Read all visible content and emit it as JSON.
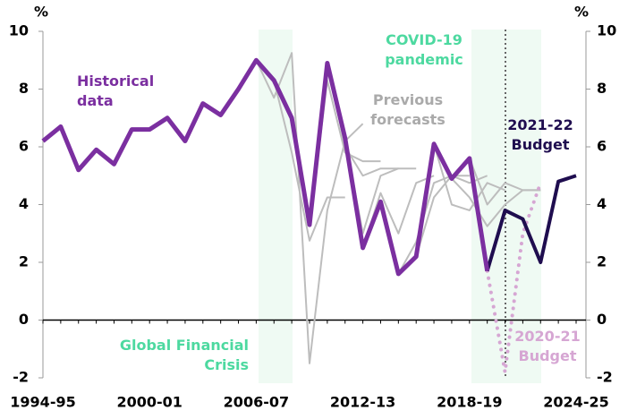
{
  "chart_data": {
    "type": "line",
    "categories": [
      "1994-95",
      null,
      null,
      null,
      null,
      null,
      "2000-01",
      null,
      null,
      null,
      null,
      null,
      "2006-07",
      null,
      null,
      null,
      null,
      null,
      "2012-13",
      null,
      null,
      null,
      null,
      null,
      "2018-19",
      null,
      null,
      null,
      null,
      null,
      "2024-25"
    ],
    "y_label": "%",
    "y2_label": "%",
    "ylim": [
      -2,
      10
    ],
    "yticks": [
      -2,
      0,
      2,
      4,
      6,
      8,
      10
    ],
    "y2lim": [
      -2,
      10
    ],
    "y2ticks": [
      -2,
      0,
      2,
      4,
      6,
      8,
      10
    ],
    "series": [
      {
        "name": [
          "Historical",
          "data"
        ],
        "color": "#7b2fa0",
        "width": 5,
        "values": [
          6.2,
          6.7,
          5.2,
          5.9,
          5.4,
          6.6,
          6.6,
          7.0,
          6.2,
          7.5,
          7.1,
          8.0,
          9.0,
          8.3,
          7.0,
          3.3,
          8.9,
          6.3,
          2.5,
          4.1,
          1.6,
          2.2,
          6.1,
          4.9,
          5.6,
          1.7,
          null,
          null,
          null,
          null,
          null
        ]
      },
      {
        "name": [
          "2021-22",
          "Budget"
        ],
        "color": "#1f0d4f",
        "width": 4,
        "values": [
          null,
          null,
          null,
          null,
          null,
          null,
          null,
          null,
          null,
          null,
          null,
          null,
          null,
          null,
          null,
          null,
          null,
          null,
          null,
          null,
          null,
          null,
          null,
          null,
          null,
          1.7,
          3.8,
          3.5,
          2.0,
          4.8,
          5.0
        ]
      },
      {
        "name": [
          "2020-21",
          "Budget"
        ],
        "color": "#d6a6d3",
        "width": 4,
        "dotted": true,
        "values": [
          null,
          null,
          null,
          null,
          null,
          null,
          null,
          null,
          null,
          null,
          null,
          null,
          null,
          null,
          null,
          null,
          null,
          null,
          null,
          null,
          null,
          null,
          null,
          null,
          null,
          1.7,
          -1.8,
          3.0,
          4.75,
          null,
          null
        ]
      }
    ],
    "forecasts_label": [
      "Previous",
      "forecasts"
    ],
    "forecasts_color": "#bdbdbd",
    "forecasts": [
      [
        null,
        null,
        null,
        null,
        null,
        null,
        null,
        null,
        null,
        null,
        null,
        null,
        null,
        8.3,
        5.8,
        2.75,
        4.25,
        4.25,
        null,
        null,
        null,
        null,
        null,
        null,
        null,
        null,
        null,
        null,
        null,
        null,
        null
      ],
      [
        null,
        null,
        null,
        null,
        null,
        null,
        null,
        null,
        null,
        null,
        null,
        null,
        9.0,
        7.7,
        9.25,
        -1.5,
        3.8,
        6.2,
        6.8,
        null,
        null,
        null,
        null,
        null,
        null,
        null,
        null,
        null,
        null,
        null,
        null
      ],
      [
        null,
        null,
        null,
        null,
        null,
        null,
        null,
        null,
        null,
        null,
        null,
        null,
        null,
        null,
        null,
        3.3,
        8.3,
        5.8,
        5.5,
        5.5,
        null,
        null,
        null,
        null,
        null,
        null,
        null,
        null,
        null,
        null,
        null
      ],
      [
        null,
        null,
        null,
        null,
        null,
        null,
        null,
        null,
        null,
        null,
        null,
        null,
        null,
        null,
        null,
        null,
        8.9,
        6.0,
        5.0,
        5.25,
        5.25,
        null,
        null,
        null,
        null,
        null,
        null,
        null,
        null,
        null,
        null
      ],
      [
        null,
        null,
        null,
        null,
        null,
        null,
        null,
        null,
        null,
        null,
        null,
        null,
        null,
        null,
        null,
        null,
        null,
        6.3,
        3.0,
        5.0,
        5.25,
        5.25,
        null,
        null,
        null,
        null,
        null,
        null,
        null,
        null,
        null
      ],
      [
        null,
        null,
        null,
        null,
        null,
        null,
        null,
        null,
        null,
        null,
        null,
        null,
        null,
        null,
        null,
        null,
        null,
        null,
        2.5,
        4.4,
        3.0,
        4.75,
        5.0,
        null,
        null,
        null,
        null,
        null,
        null,
        null,
        null
      ],
      [
        null,
        null,
        null,
        null,
        null,
        null,
        null,
        null,
        null,
        null,
        null,
        null,
        null,
        null,
        null,
        null,
        null,
        null,
        null,
        null,
        1.6,
        2.7,
        4.75,
        5.0,
        5.0,
        null,
        null,
        null,
        null,
        null,
        null
      ],
      [
        null,
        null,
        null,
        null,
        null,
        null,
        null,
        null,
        null,
        null,
        null,
        null,
        null,
        null,
        null,
        null,
        null,
        null,
        null,
        null,
        null,
        2.2,
        4.25,
        5.0,
        4.75,
        5.0,
        null,
        null,
        null,
        null,
        null
      ],
      [
        null,
        null,
        null,
        null,
        null,
        null,
        null,
        null,
        null,
        null,
        null,
        null,
        null,
        null,
        null,
        null,
        null,
        null,
        null,
        null,
        null,
        null,
        6.1,
        4.0,
        3.8,
        4.75,
        4.5,
        null,
        null,
        null,
        null
      ],
      [
        null,
        null,
        null,
        null,
        null,
        null,
        null,
        null,
        null,
        null,
        null,
        null,
        null,
        null,
        null,
        null,
        null,
        null,
        null,
        null,
        null,
        null,
        null,
        4.9,
        4.25,
        3.25,
        4.0,
        4.5,
        4.5,
        null,
        null
      ],
      [
        null,
        null,
        null,
        null,
        null,
        null,
        null,
        null,
        null,
        null,
        null,
        null,
        null,
        null,
        null,
        null,
        null,
        null,
        null,
        null,
        null,
        null,
        null,
        null,
        5.6,
        4.0,
        4.75,
        4.5,
        4.5,
        null,
        null
      ]
    ],
    "annotations": [
      {
        "text": [
          "Global Financial",
          "Crisis"
        ],
        "color": "#4dd9a0"
      },
      {
        "text": [
          "COVID-19",
          "pandemic"
        ],
        "color": "#4dd9a0"
      }
    ]
  }
}
